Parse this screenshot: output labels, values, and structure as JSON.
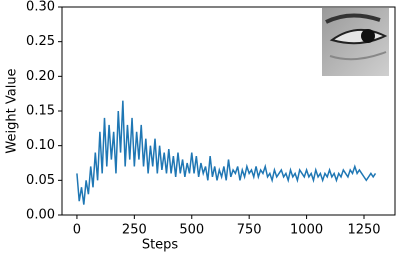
{
  "chart_data": {
    "type": "line",
    "x_label": "Steps",
    "y_label": "Weight Value",
    "x": [
      0,
      10,
      20,
      30,
      40,
      50,
      60,
      70,
      80,
      90,
      100,
      110,
      120,
      130,
      140,
      150,
      160,
      170,
      180,
      190,
      200,
      210,
      220,
      230,
      240,
      250,
      260,
      270,
      280,
      290,
      300,
      310,
      320,
      330,
      340,
      350,
      360,
      370,
      380,
      390,
      400,
      410,
      420,
      430,
      440,
      450,
      460,
      470,
      480,
      490,
      500,
      510,
      520,
      530,
      540,
      550,
      560,
      570,
      580,
      590,
      600,
      610,
      620,
      630,
      640,
      650,
      660,
      670,
      680,
      690,
      700,
      710,
      720,
      730,
      740,
      750,
      760,
      770,
      780,
      790,
      800,
      810,
      820,
      830,
      840,
      850,
      860,
      870,
      880,
      890,
      900,
      910,
      920,
      930,
      940,
      950,
      960,
      970,
      980,
      990,
      1000,
      1010,
      1020,
      1030,
      1040,
      1050,
      1060,
      1070,
      1080,
      1090,
      1100,
      1110,
      1120,
      1130,
      1140,
      1150,
      1160,
      1170,
      1180,
      1190,
      1200,
      1210,
      1220,
      1230,
      1240,
      1250,
      1260,
      1270,
      1280,
      1290,
      1300
    ],
    "series": [
      {
        "color": "#1f77b4",
        "values": [
          0.06,
          0.02,
          0.04,
          0.015,
          0.05,
          0.03,
          0.07,
          0.04,
          0.09,
          0.05,
          0.12,
          0.06,
          0.14,
          0.07,
          0.13,
          0.08,
          0.12,
          0.06,
          0.15,
          0.09,
          0.165,
          0.07,
          0.13,
          0.08,
          0.14,
          0.07,
          0.12,
          0.08,
          0.13,
          0.07,
          0.11,
          0.06,
          0.1,
          0.07,
          0.11,
          0.06,
          0.1,
          0.065,
          0.09,
          0.06,
          0.095,
          0.06,
          0.085,
          0.055,
          0.09,
          0.06,
          0.08,
          0.055,
          0.075,
          0.06,
          0.09,
          0.06,
          0.085,
          0.055,
          0.075,
          0.06,
          0.07,
          0.05,
          0.085,
          0.055,
          0.07,
          0.05,
          0.065,
          0.055,
          0.07,
          0.05,
          0.08,
          0.055,
          0.065,
          0.06,
          0.07,
          0.05,
          0.065,
          0.055,
          0.07,
          0.06,
          0.065,
          0.055,
          0.07,
          0.055,
          0.065,
          0.06,
          0.07,
          0.055,
          0.06,
          0.05,
          0.065,
          0.055,
          0.06,
          0.065,
          0.055,
          0.06,
          0.05,
          0.065,
          0.055,
          0.06,
          0.05,
          0.065,
          0.06,
          0.055,
          0.065,
          0.055,
          0.06,
          0.05,
          0.065,
          0.055,
          0.06,
          0.05,
          0.06,
          0.055,
          0.065,
          0.055,
          0.06,
          0.05,
          0.06,
          0.055,
          0.065,
          0.06,
          0.055,
          0.065,
          0.06,
          0.07,
          0.06,
          0.065,
          0.06,
          0.055,
          0.05,
          0.055,
          0.06,
          0.055,
          0.06
        ]
      }
    ],
    "xlim": [
      -65,
      1385
    ],
    "ylim": [
      0,
      0.3
    ],
    "xticks": [
      0,
      250,
      500,
      750,
      1000,
      1250
    ],
    "yticks": [
      {
        "value": 0,
        "label": "0.00"
      },
      0.05,
      {
        "value": 0.1,
        "label": "0.10"
      },
      0.15,
      {
        "value": 0.2,
        "label": "0.20"
      },
      0.25,
      {
        "value": 0.3,
        "label": "0.30"
      }
    ]
  }
}
